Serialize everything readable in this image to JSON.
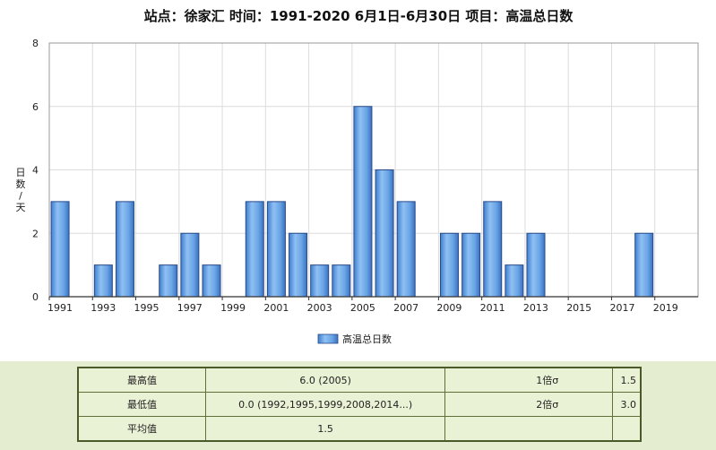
{
  "chart_data": {
    "type": "bar",
    "title": "站点：徐家汇 时间：1991-2020  6月1日-6月30日 项目：高温总日数",
    "ylabel": "日数/天",
    "xlabel": "",
    "ylim": [
      0,
      8
    ],
    "yticks": [
      0,
      2,
      4,
      6,
      8
    ],
    "grid": true,
    "legend_position": "bottom-center",
    "x_tick_labels": [
      "1991",
      "1993",
      "1995",
      "1997",
      "1999",
      "2001",
      "2003",
      "2005",
      "2007",
      "2009",
      "2011",
      "2013",
      "2015",
      "2017",
      "2019"
    ],
    "categories": [
      "1991",
      "1992",
      "1993",
      "1994",
      "1995",
      "1996",
      "1997",
      "1998",
      "1999",
      "2000",
      "2001",
      "2002",
      "2003",
      "2004",
      "2005",
      "2006",
      "2007",
      "2008",
      "2009",
      "2010",
      "2011",
      "2012",
      "2013",
      "2014",
      "2015",
      "2016",
      "2017",
      "2018",
      "2019",
      "2020"
    ],
    "series": [
      {
        "name": "高温总日数",
        "values": [
          3,
          0,
          1,
          3,
          0,
          1,
          2,
          1,
          0,
          3,
          3,
          2,
          1,
          1,
          6,
          4,
          3,
          0,
          2,
          2,
          3,
          1,
          2,
          0,
          0,
          0,
          0,
          2,
          0,
          0
        ]
      }
    ],
    "colors": {
      "bar": "#6fa8e8",
      "bar_edge": "#2a4a8a",
      "grid": "#dcdcdc"
    }
  },
  "stats": {
    "rows": [
      {
        "label": "最高值",
        "value": "6.0 (2005)",
        "sigma_label": "1倍σ",
        "sigma_value": "1.5"
      },
      {
        "label": "最低值",
        "value": "0.0 (1992,1995,1999,2008,2014...)",
        "sigma_label": "2倍σ",
        "sigma_value": "3.0"
      },
      {
        "label": "平均值",
        "value": "1.5",
        "sigma_label": "",
        "sigma_value": ""
      }
    ]
  }
}
